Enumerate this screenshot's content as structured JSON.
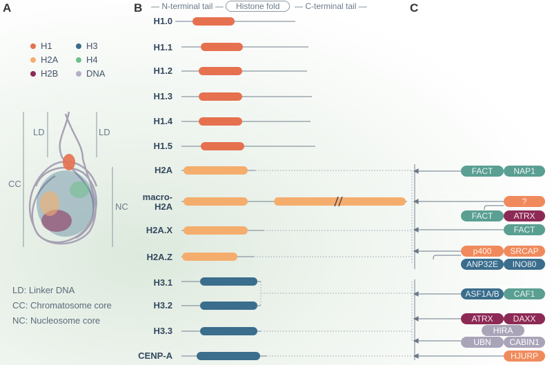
{
  "panels": {
    "a": "A",
    "b": "B",
    "c": "C"
  },
  "domains": {
    "n_tail": "N-terminal tail",
    "fold": "Histone fold",
    "c_tail": "C-terminal tail"
  },
  "legend": [
    {
      "label": "H1",
      "color": "#e5714f"
    },
    {
      "label": "H3",
      "color": "#3b6d8c"
    },
    {
      "label": "H2A",
      "color": "#f5ad6d"
    },
    {
      "label": "H4",
      "color": "#6fbf8a"
    },
    {
      "label": "H2B",
      "color": "#8c2a55"
    },
    {
      "label": "DNA",
      "color": "#b5adc8"
    }
  ],
  "structure_labels": {
    "ld": "LD",
    "cc": "CC",
    "nc": "NC"
  },
  "glossary": [
    "LD: Linker DNA",
    "CC: Chromatosome core",
    "NC: Nucleosome core"
  ],
  "proteins": [
    "H1.0",
    "H1.1",
    "H1.2",
    "H1.3",
    "H1.4",
    "H1.5",
    "H2A",
    "macro-",
    "H2A",
    "H2A.X",
    "H2A.Z",
    "H3.1",
    "H3.2",
    "H3.3",
    "CENP-A"
  ],
  "chaperones": {
    "fact": "FACT",
    "nap1": "NAP1",
    "question": "?",
    "atrx": "ATRX",
    "p400": "p400",
    "srcap": "SRCAP",
    "anp32e": "ANP32E",
    "ino80": "INO80",
    "asf1": "ASF1A/B",
    "caf1": "CAF1",
    "daxx": "DAXX",
    "hira": "HIRA",
    "ubn": "UBN",
    "cabin1": "CABIN1",
    "hjurp": "HJURP"
  }
}
